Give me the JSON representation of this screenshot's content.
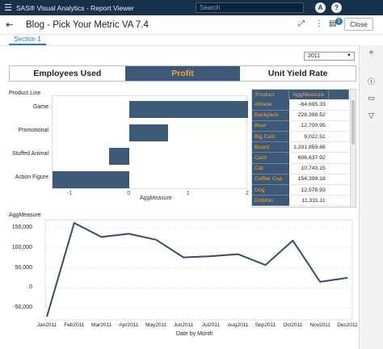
{
  "app": {
    "title": "SAS® Visual Analytics - Report Viewer",
    "search_placeholder": "Search",
    "user_initial": "A",
    "help_label": "?",
    "menu_icon": "hamburger-icon"
  },
  "report": {
    "title": "Blog - Pick Your Metric VA 7.4",
    "notification_count": "1",
    "close_label": "Close",
    "section_tab": "Section 1"
  },
  "filter": {
    "year": "2011"
  },
  "buttons": {
    "items": [
      {
        "label": "Employees Used",
        "selected": false
      },
      {
        "label": "Profit",
        "selected": true
      },
      {
        "label": "Unit Yield Rate",
        "selected": false
      }
    ]
  },
  "bar_chart": {
    "type": "bar",
    "orientation": "horizontal",
    "ylabel": "Product Line",
    "xlabel": "AggMeasure",
    "categories": [
      "Game",
      "Promotional",
      "Stuffed Animal",
      "Action Figure"
    ],
    "values": [
      2.0,
      0.65,
      -0.35,
      -1.3
    ],
    "xlim": [
      -1.3,
      2.0
    ],
    "xticks": [
      "-1",
      "0",
      "1",
      "2"
    ],
    "color": "#3c5a78"
  },
  "table": {
    "headers": [
      "Product",
      "AggMeasure"
    ],
    "rows": [
      [
        "Athlete",
        "-64,695.33"
      ],
      [
        "Backpack",
        "228,398.52"
      ],
      [
        "Bear",
        "12,700.95"
      ],
      [
        "Big Cats",
        "9,022.51"
      ],
      [
        "Board",
        "1,201,859.66"
      ],
      [
        "Card",
        "606,637.92"
      ],
      [
        "Cat",
        "10,743.15"
      ],
      [
        "Coffee Cup",
        "154,399.18"
      ],
      [
        "Dog",
        "12,578.93"
      ],
      [
        "Dolphin",
        "11,331.11"
      ]
    ],
    "header_color": "#3c5a78",
    "accent_color": "#f0a33a"
  },
  "chart_data": {
    "type": "line",
    "title": "AggMeasure",
    "xlabel": "Date by Month",
    "ylabel": "AggMeasure",
    "x": [
      "Jan2011",
      "Feb2011",
      "Mar2011",
      "Apr2011",
      "May2011",
      "Jun2011",
      "Jul2011",
      "Aug2011",
      "Sep2011",
      "Oct2011",
      "Nov2011",
      "Dec2011"
    ],
    "values": [
      -72000,
      162000,
      127000,
      135000,
      120000,
      76000,
      79000,
      84000,
      57000,
      118000,
      15000,
      25000
    ],
    "yticks": [
      "150,000",
      "100,000",
      "50,000",
      "0",
      "-50,000"
    ],
    "ylim": [
      -80000,
      170000
    ],
    "grid": true,
    "color": "#2f4f6f"
  }
}
